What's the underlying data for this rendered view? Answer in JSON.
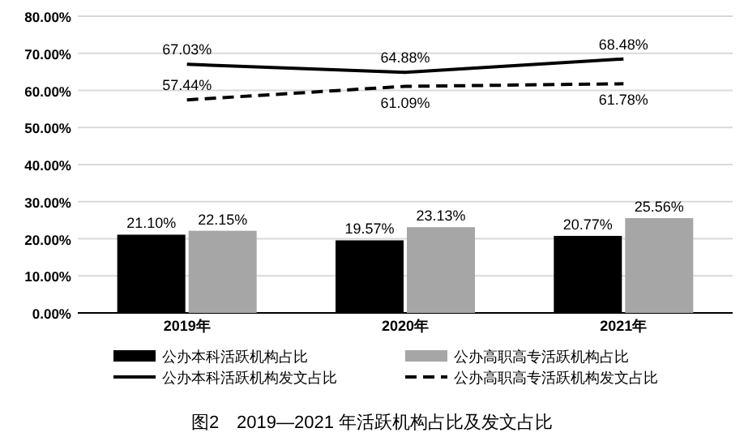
{
  "chart_data": {
    "type": "bar",
    "title": "图2　2019—2021 年活跃机构占比及发文占比",
    "categories": [
      "2019年",
      "2020年",
      "2021年"
    ],
    "series": [
      {
        "name": "公办本科活跃机构占比",
        "color": "#000000",
        "values": [
          21.1,
          19.57,
          20.77
        ],
        "value_labels": [
          "21.10%",
          "19.57%",
          "20.77%"
        ]
      },
      {
        "name": "公办高职高专活跃机构占比",
        "color": "#a6a6a6",
        "values": [
          22.15,
          23.13,
          25.56
        ],
        "value_labels": [
          "22.15%",
          "23.13%",
          "25.56%"
        ]
      },
      {
        "name": "公办本科活跃机构发文占比",
        "type": "line",
        "line_style": "solid",
        "color": "#000000",
        "values": [
          67.03,
          64.88,
          68.48
        ],
        "value_labels": [
          "67.03%",
          "64.88%",
          "68.48%"
        ]
      },
      {
        "name": "公办高职高专活跃机构发文占比",
        "type": "line",
        "line_style": "dashed",
        "color": "#000000",
        "values": [
          57.44,
          61.09,
          61.78
        ],
        "value_labels": [
          "57.44%",
          "61.09%",
          "61.78%"
        ]
      }
    ],
    "ylim": [
      0,
      80
    ],
    "yticks": [
      {
        "value": 0,
        "label": "0.00%"
      },
      {
        "value": 10,
        "label": "10.00%"
      },
      {
        "value": 20,
        "label": "20.00%"
      },
      {
        "value": 30,
        "label": "30.00%"
      },
      {
        "value": 40,
        "label": "40.00%"
      },
      {
        "value": 50,
        "label": "50.00%"
      },
      {
        "value": 60,
        "label": "60.00%"
      },
      {
        "value": 70,
        "label": "70.00%"
      },
      {
        "value": 80,
        "label": "80.00%"
      }
    ],
    "grid": "y",
    "legend": "bottom"
  }
}
